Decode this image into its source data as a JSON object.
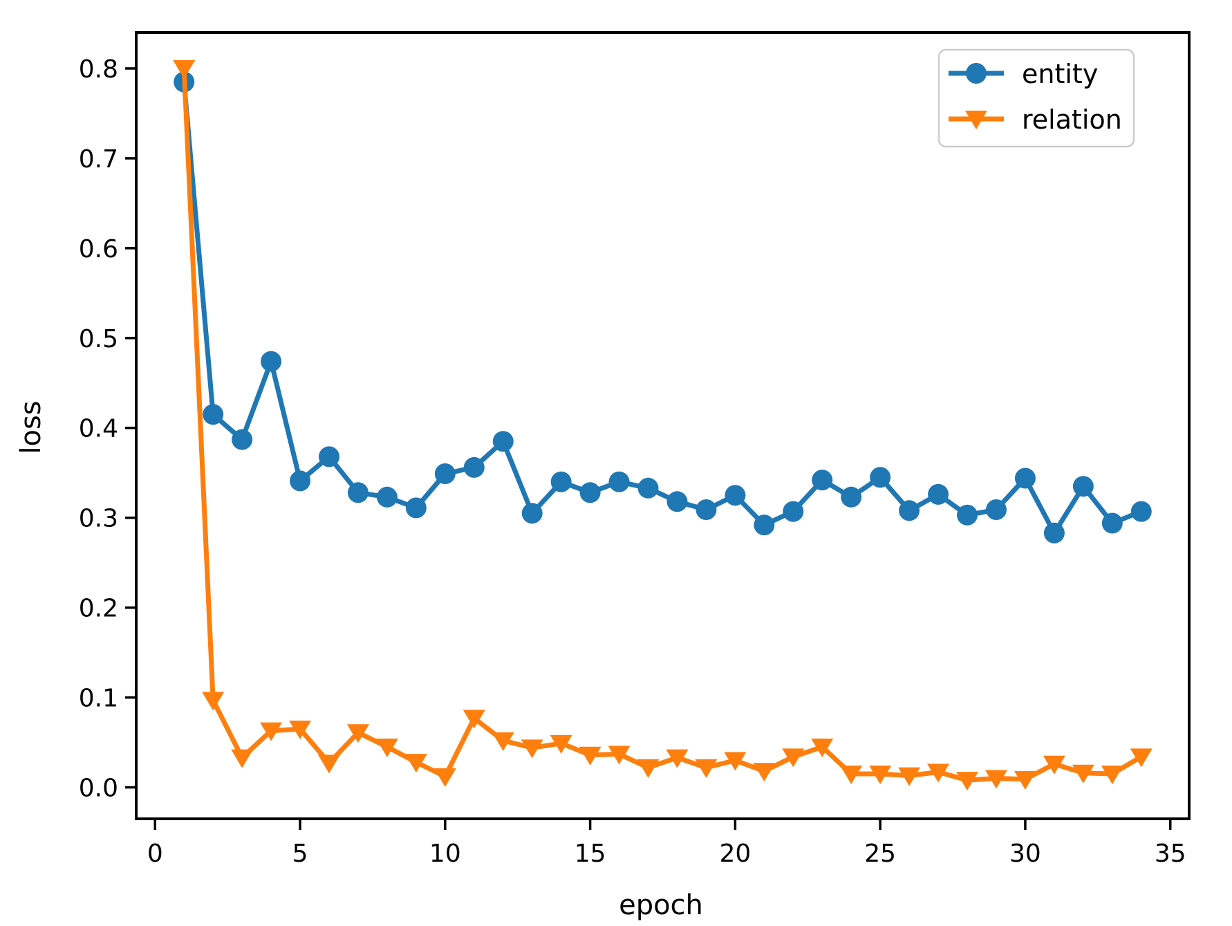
{
  "chart_data": {
    "type": "line",
    "title": "",
    "xlabel": "epoch",
    "ylabel": "loss",
    "xlim": [
      -0.65,
      35.65
    ],
    "ylim": [
      -0.035,
      0.84
    ],
    "grid": false,
    "legend_position": "upper right",
    "x_ticks": [
      0,
      5,
      10,
      15,
      20,
      25,
      30,
      35
    ],
    "y_tick_labels": [
      "0.0",
      "0.1",
      "0.2",
      "0.3",
      "0.4",
      "0.5",
      "0.6",
      "0.7",
      "0.8"
    ],
    "x": [
      1,
      2,
      3,
      4,
      5,
      6,
      7,
      8,
      9,
      10,
      11,
      12,
      13,
      14,
      15,
      16,
      17,
      18,
      19,
      20,
      21,
      22,
      23,
      24,
      25,
      26,
      27,
      28,
      29,
      30,
      31,
      32,
      33,
      34
    ],
    "series": [
      {
        "name": "entity",
        "color": "#1f77b4",
        "marker": "circle",
        "values": [
          0.785,
          0.415,
          0.387,
          0.474,
          0.341,
          0.368,
          0.328,
          0.323,
          0.311,
          0.349,
          0.356,
          0.385,
          0.305,
          0.34,
          0.328,
          0.34,
          0.333,
          0.318,
          0.309,
          0.325,
          0.292,
          0.307,
          0.342,
          0.323,
          0.345,
          0.308,
          0.326,
          0.303,
          0.309,
          0.344,
          0.283,
          0.335,
          0.294,
          0.307
        ]
      },
      {
        "name": "relation",
        "color": "#ff7f0e",
        "marker": "triangle-down",
        "values": [
          0.8,
          0.097,
          0.033,
          0.063,
          0.065,
          0.027,
          0.061,
          0.045,
          0.028,
          0.012,
          0.077,
          0.052,
          0.044,
          0.049,
          0.036,
          0.037,
          0.022,
          0.033,
          0.022,
          0.03,
          0.018,
          0.034,
          0.045,
          0.015,
          0.015,
          0.013,
          0.017,
          0.008,
          0.01,
          0.009,
          0.026,
          0.016,
          0.015,
          0.034
        ]
      }
    ]
  }
}
